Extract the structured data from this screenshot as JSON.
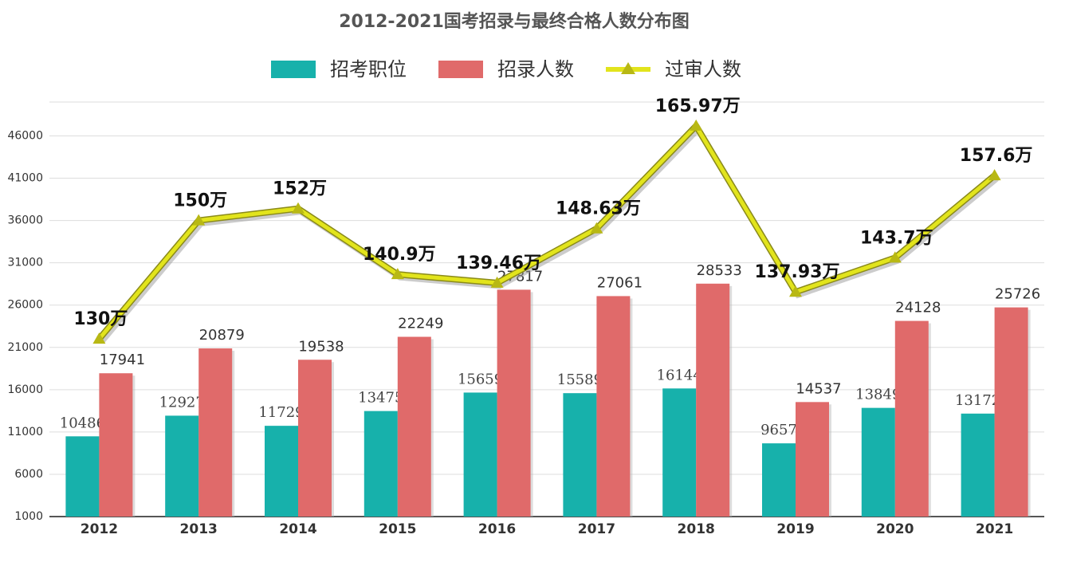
{
  "chart_data": {
    "type": "bar-line",
    "title": "2012-2021国考招录与最终合格人数分布图",
    "categories": [
      "2012",
      "2013",
      "2014",
      "2015",
      "2016",
      "2017",
      "2018",
      "2019",
      "2020",
      "2021"
    ],
    "series": [
      {
        "name": "招考职位",
        "type": "bar",
        "color": "#17b1ab",
        "values": [
          10486,
          12927,
          11729,
          13475,
          15659,
          15589,
          16144,
          9657,
          13849,
          13172
        ]
      },
      {
        "name": "招录人数",
        "type": "bar",
        "color": "#e06a6a",
        "values": [
          17941,
          20879,
          19538,
          22249,
          27817,
          27061,
          28533,
          14537,
          24128,
          25726
        ]
      },
      {
        "name": "过审人数",
        "type": "line",
        "axis": "y2",
        "color": "#e2e41c",
        "values": [
          130,
          150,
          152,
          140.9,
          139.46,
          148.63,
          165.97,
          137.93,
          143.7,
          157.6
        ],
        "value_labels": [
          "130万",
          "150万",
          "152万",
          "140.9万",
          "139.46万",
          "148.63万",
          "165.97万",
          "137.93万",
          "143.7万",
          "157.6万"
        ]
      }
    ],
    "ylim": [
      1000,
      50000
    ],
    "yticks": [
      1000,
      6000,
      11000,
      16000,
      21000,
      26000,
      31000,
      36000,
      41000,
      46000
    ],
    "y2lim": [
      100,
      170
    ],
    "grid": true,
    "legend": "top"
  }
}
